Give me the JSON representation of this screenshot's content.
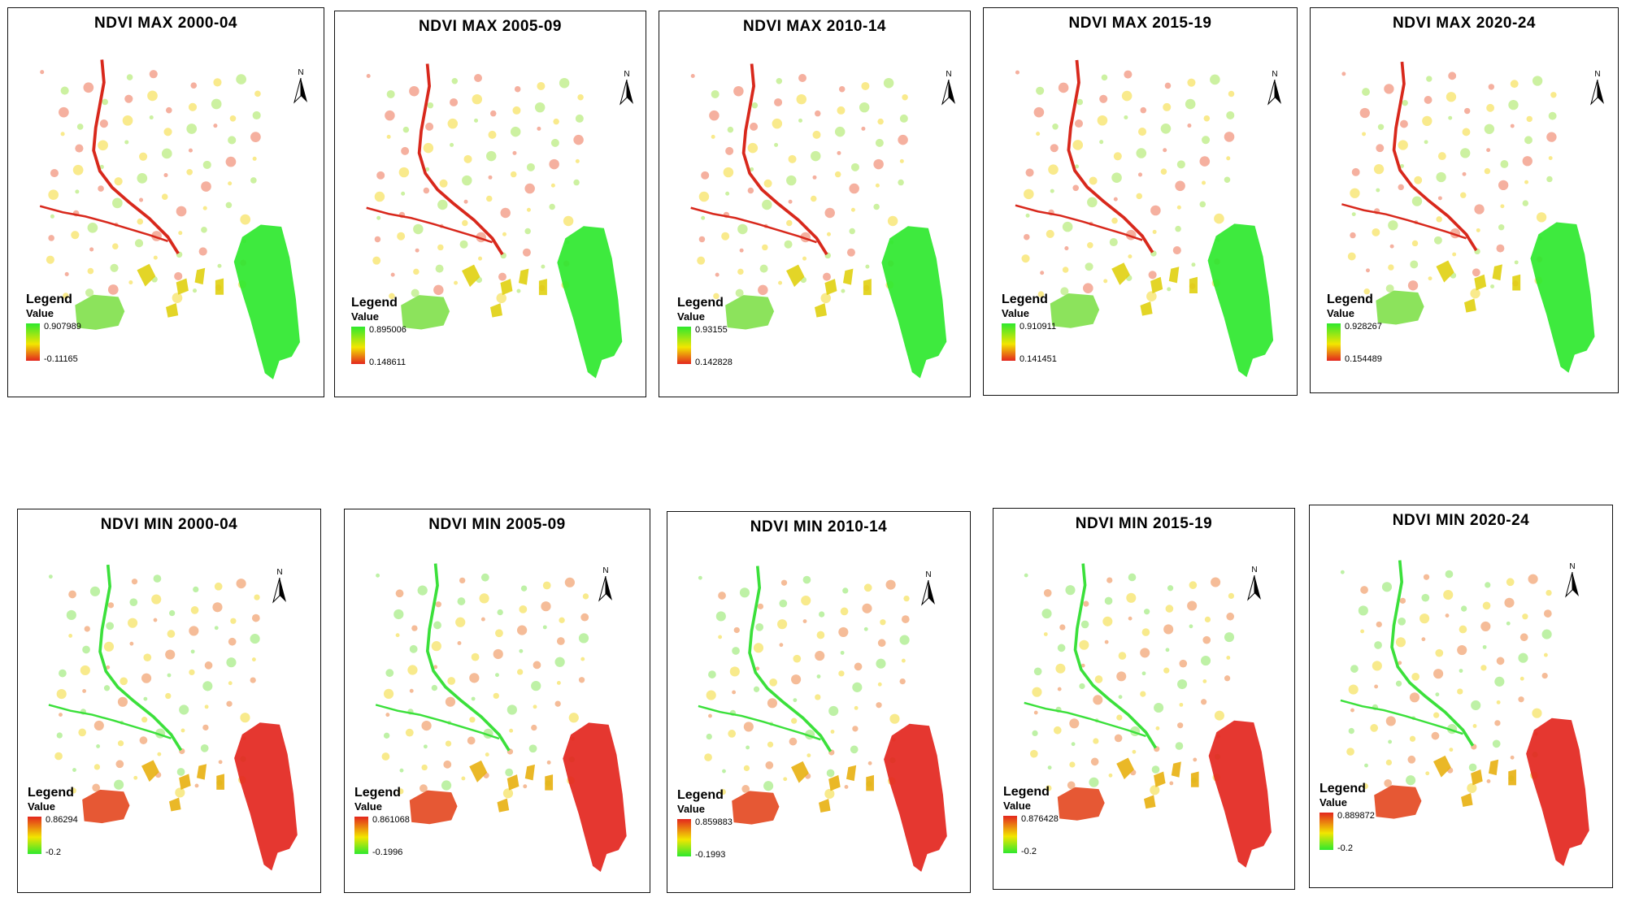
{
  "figure": {
    "panels": [
      {
        "title": "NDVI MAX 2000-04",
        "legend_title": "Legend",
        "legend_subtitle": "Value",
        "max_value": "0.907989",
        "min_value": "-0.11165",
        "kind": "max"
      },
      {
        "title": "NDVI MAX 2005-09",
        "legend_title": "Legend",
        "legend_subtitle": "Value",
        "max_value": "0.895006",
        "min_value": "0.148611",
        "kind": "max"
      },
      {
        "title": "NDVI MAX 2010-14",
        "legend_title": "Legend",
        "legend_subtitle": "Value",
        "max_value": "0.93155",
        "min_value": "0.142828",
        "kind": "max"
      },
      {
        "title": "NDVI MAX 2015-19",
        "legend_title": "Legend",
        "legend_subtitle": "Value",
        "max_value": "0.910911",
        "min_value": "0.141451",
        "kind": "max"
      },
      {
        "title": "NDVI MAX 2020-24",
        "legend_title": "Legend",
        "legend_subtitle": "Value",
        "max_value": "0.928267",
        "min_value": "0.154489",
        "kind": "max"
      },
      {
        "title": "NDVI MIN 2000-04",
        "legend_title": "Legend",
        "legend_subtitle": "Value",
        "max_value": "0.86294",
        "min_value": "-0.2",
        "kind": "min"
      },
      {
        "title": "NDVI MIN 2005-09",
        "legend_title": "Legend",
        "legend_subtitle": "Value",
        "max_value": "0.861068",
        "min_value": "-0.1996",
        "kind": "min"
      },
      {
        "title": "NDVI MIN 2010-14",
        "legend_title": "Legend",
        "legend_subtitle": "Value",
        "max_value": "0.859883",
        "min_value": "-0.1993",
        "kind": "min"
      },
      {
        "title": "NDVI MIN 2015-19",
        "legend_title": "Legend",
        "legend_subtitle": "Value",
        "max_value": "0.876428",
        "min_value": "-0.2",
        "kind": "min"
      },
      {
        "title": "NDVI MIN 2020-24",
        "legend_title": "Legend",
        "legend_subtitle": "Value",
        "max_value": "0.889872",
        "min_value": "-0.2",
        "kind": "min"
      }
    ],
    "north_label": "N",
    "colors": {
      "max_high": "#2ee82e",
      "max_mid": "#f2e600",
      "max_low": "#e3261e",
      "min_high": "#e3261e",
      "min_mid": "#f2e600",
      "min_low": "#2ee82e",
      "river_max": "#d8281c",
      "river_min": "#3be03b"
    },
    "icons": {
      "north_arrow": "north-arrow-icon"
    }
  }
}
